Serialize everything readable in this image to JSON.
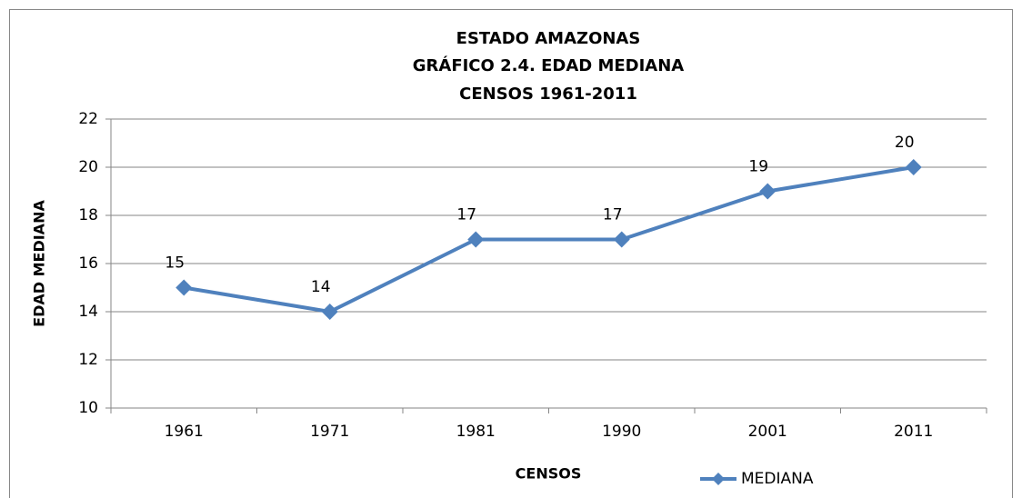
{
  "chart_data": {
    "type": "line",
    "title": [
      "ESTADO AMAZONAS",
      "GRÁFICO 2.4. EDAD MEDIANA",
      "CENSOS 1961-2011"
    ],
    "x_label": "CENSOS",
    "y_label": "EDAD MEDIANA",
    "categories": [
      "1961",
      "1971",
      "1981",
      "1990",
      "2001",
      "2011"
    ],
    "series": [
      {
        "name": "MEDIANA",
        "color": "#4f81bd",
        "values": [
          15,
          14,
          17,
          17,
          19,
          20
        ]
      }
    ],
    "ylim": [
      10,
      22
    ],
    "yticks": [
      10,
      12,
      14,
      16,
      18,
      20,
      22
    ],
    "grid": true,
    "legend": "bottom-right"
  }
}
